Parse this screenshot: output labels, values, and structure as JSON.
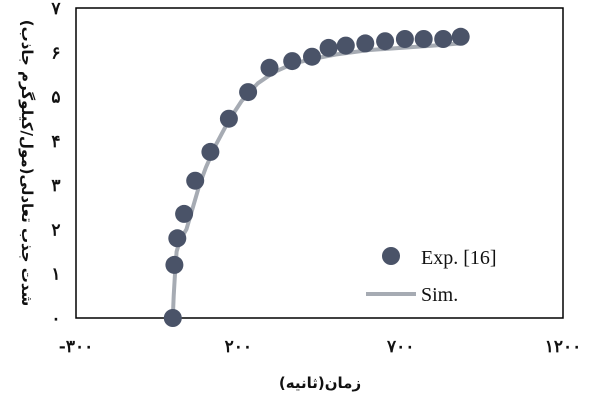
{
  "chart_data": {
    "type": "scatter",
    "xlabel": "زمان(ثانیه)",
    "ylabel": "شدت جذب تعادلی(مول/کیلوگرم جاذب)",
    "xlim": [
      -300,
      1200
    ],
    "ylim": [
      0,
      7
    ],
    "xticks": [
      -300,
      200,
      700,
      1200
    ],
    "xtick_labels": [
      "-۳۰۰",
      "۲۰۰",
      "۷۰۰",
      "۱۲۰۰"
    ],
    "yticks": [
      0,
      1,
      2,
      3,
      4,
      5,
      6,
      7
    ],
    "ytick_labels": [
      "۰",
      "۱",
      "۲",
      "۳",
      "۴",
      "۵",
      "۶",
      "۷"
    ],
    "grid": false,
    "legend_position": "bottom-right",
    "series": [
      {
        "name": "Exp. [16]",
        "kind": "scatter",
        "color": "#4a5368",
        "x": [
          -2,
          3,
          12,
          33,
          67,
          114,
          171,
          230,
          296,
          366,
          427,
          478,
          531,
          591,
          652,
          713,
          771,
          831,
          885
        ],
        "y": [
          0.0,
          1.2,
          1.8,
          2.35,
          3.1,
          3.75,
          4.5,
          5.1,
          5.65,
          5.8,
          5.9,
          6.1,
          6.15,
          6.2,
          6.25,
          6.3,
          6.3,
          6.3,
          6.35
        ]
      },
      {
        "name": "Sim.",
        "kind": "line",
        "color": "#a6abb3",
        "x": [
          -2,
          1,
          5,
          10,
          20,
          40,
          60,
          80,
          100,
          130,
          170,
          210,
          260,
          310,
          370,
          430,
          500,
          600,
          700,
          800,
          885
        ],
        "y": [
          0.0,
          0.5,
          1.0,
          1.5,
          1.75,
          2.0,
          2.5,
          3.0,
          3.4,
          3.9,
          4.45,
          4.9,
          5.3,
          5.55,
          5.75,
          5.85,
          5.95,
          6.05,
          6.1,
          6.15,
          6.2
        ]
      }
    ]
  }
}
